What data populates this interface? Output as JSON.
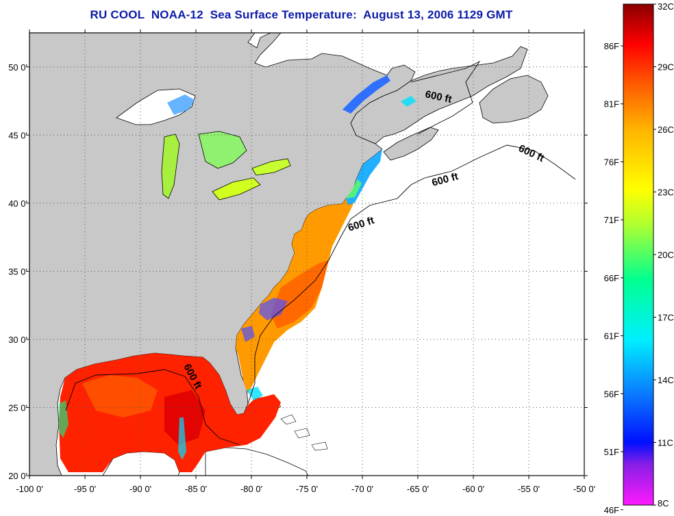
{
  "title": "RU COOL  NOAA-12  Sea Surface Temperature:  August 13, 2006 1129 GMT",
  "map": {
    "lon_ticks": [
      "-100 0'",
      "-95 0'",
      "-90 0'",
      "-85 0'",
      "-80 0'",
      "-75 0'",
      "-70 0'",
      "-65 0'",
      "-60 0'",
      "-55 0'",
      "-50 0'"
    ],
    "lat_ticks": [
      "50 0'",
      "45 0'",
      "40 0'",
      "35 0'",
      "30 0'",
      "25 0'",
      "20 0'"
    ],
    "lon_range": [
      -100,
      -50
    ],
    "lat_range": [
      20,
      52.5
    ],
    "land_color": "#c8c8c8",
    "ocean_color": "#ffffff",
    "isobath_labels": [
      "600 ft",
      "600 ft",
      "600 ft",
      "600 ft",
      "600 ft"
    ]
  },
  "colorbar": {
    "fahrenheit_labels": [
      "86F",
      "81F",
      "76F",
      "71F",
      "66F",
      "61F",
      "56F",
      "51F",
      "46F"
    ],
    "celsius_labels": [
      "32C",
      "29C",
      "26C",
      "23C",
      "20C",
      "17C",
      "14C",
      "11C",
      "8C"
    ],
    "range_c": [
      8,
      32
    ],
    "colors": [
      "#ff1aff",
      "#8a1ee6",
      "#0010ff",
      "#0a78ff",
      "#00e0ff",
      "#00ff90",
      "#b0ff30",
      "#ffff00",
      "#ffb400",
      "#ff6a00",
      "#ff0000",
      "#8a0000"
    ]
  }
}
